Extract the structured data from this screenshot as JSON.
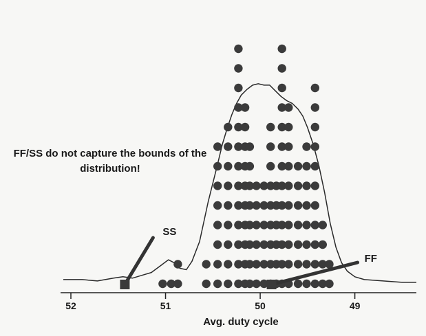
{
  "chart_data": {
    "type": "scatter",
    "title": "",
    "xlabel": "Avg. duty cycle",
    "ylabel": "",
    "x_reversed": true,
    "xlim": [
      52.08,
      48.35
    ],
    "x_ticks": [
      "52",
      "51",
      "50",
      "49"
    ],
    "grid": false,
    "dot_stacks": [
      {
        "x": 51.03,
        "count": 1
      },
      {
        "x": 50.94,
        "count": 1
      },
      {
        "x": 50.87,
        "count": 2
      },
      {
        "x": 50.57,
        "count": 2
      },
      {
        "x": 50.45,
        "count": 8
      },
      {
        "x": 50.34,
        "count": 9
      },
      {
        "x": 50.23,
        "count": 13
      },
      {
        "x": 50.16,
        "count": 10
      },
      {
        "x": 50.11,
        "count": 8
      },
      {
        "x": 50.04,
        "count": 6
      },
      {
        "x": 49.96,
        "count": 6
      },
      {
        "x": 49.89,
        "count": 9
      },
      {
        "x": 49.83,
        "count": 6
      },
      {
        "x": 49.77,
        "count": 13
      },
      {
        "x": 49.7,
        "count": 10
      },
      {
        "x": 49.6,
        "count": 7
      },
      {
        "x": 49.51,
        "count": 8
      },
      {
        "x": 49.42,
        "count": 11
      },
      {
        "x": 49.34,
        "count": 4
      },
      {
        "x": 49.27,
        "count": 2
      }
    ],
    "density_curve": {
      "x": [
        52.08,
        51.88,
        51.72,
        51.55,
        51.45,
        51.35,
        51.25,
        51.15,
        51.05,
        50.97,
        50.91,
        50.85,
        50.78,
        50.72,
        50.64,
        50.55,
        50.45,
        50.4,
        50.35,
        50.3,
        50.25,
        50.2,
        50.14,
        50.08,
        50.02,
        49.96,
        49.9,
        49.84,
        49.78,
        49.72,
        49.66,
        49.6,
        49.55,
        49.5,
        49.44,
        49.38,
        49.32,
        49.26,
        49.2,
        49.14,
        49.08,
        49.0,
        48.9,
        48.7,
        48.5,
        48.35
      ],
      "y": [
        0.3,
        0.3,
        0.2,
        0.4,
        0.5,
        0.4,
        0.6,
        0.8,
        1.3,
        1.7,
        1.5,
        1.1,
        1.0,
        1.6,
        3.0,
        5.8,
        8.5,
        9.9,
        11.0,
        12.0,
        12.8,
        13.4,
        13.8,
        14.1,
        14.2,
        14.1,
        14.1,
        13.7,
        13.3,
        13.0,
        12.8,
        12.4,
        11.9,
        11.1,
        9.9,
        8.4,
        6.5,
        4.3,
        2.6,
        1.5,
        0.9,
        0.5,
        0.3,
        0.2,
        0.1,
        0.1
      ]
    },
    "markers": [
      {
        "name": "SS",
        "x": 51.43
      },
      {
        "name": "FF",
        "x": 49.88
      }
    ],
    "annotation": "FF/SS do not capture the bounds of the distribution!"
  },
  "colors": {
    "dots": "#3b3b3b",
    "line": "#2a2a2a",
    "background": "#f7f7f5"
  }
}
